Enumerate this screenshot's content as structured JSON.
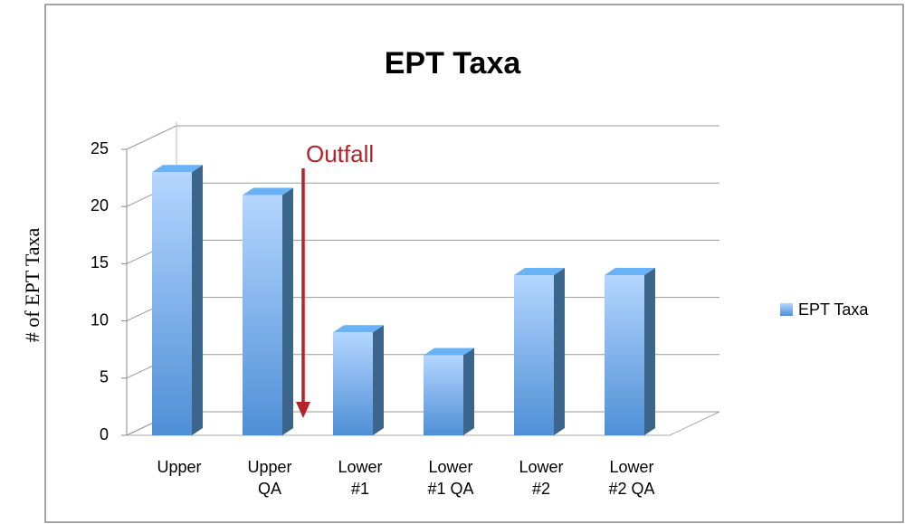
{
  "chart_data": {
    "type": "bar",
    "title": "EPT Taxa",
    "y_label": "# of EPT Taxa",
    "categories": [
      "Upper",
      "Upper QA",
      "Lower #1",
      "Lower #1 QA",
      "Lower #2",
      "Lower #2 QA"
    ],
    "series": [
      {
        "name": "EPT Taxa",
        "color": "#5b9bd5",
        "values": [
          23,
          21,
          9,
          7,
          14,
          14
        ]
      }
    ],
    "ylim": [
      0,
      25
    ],
    "yticks": [
      0,
      5,
      10,
      15,
      20,
      25
    ],
    "grid": true,
    "legend": "right",
    "annotations": [
      {
        "text": "Outfall",
        "color": "#b3242a"
      }
    ]
  }
}
